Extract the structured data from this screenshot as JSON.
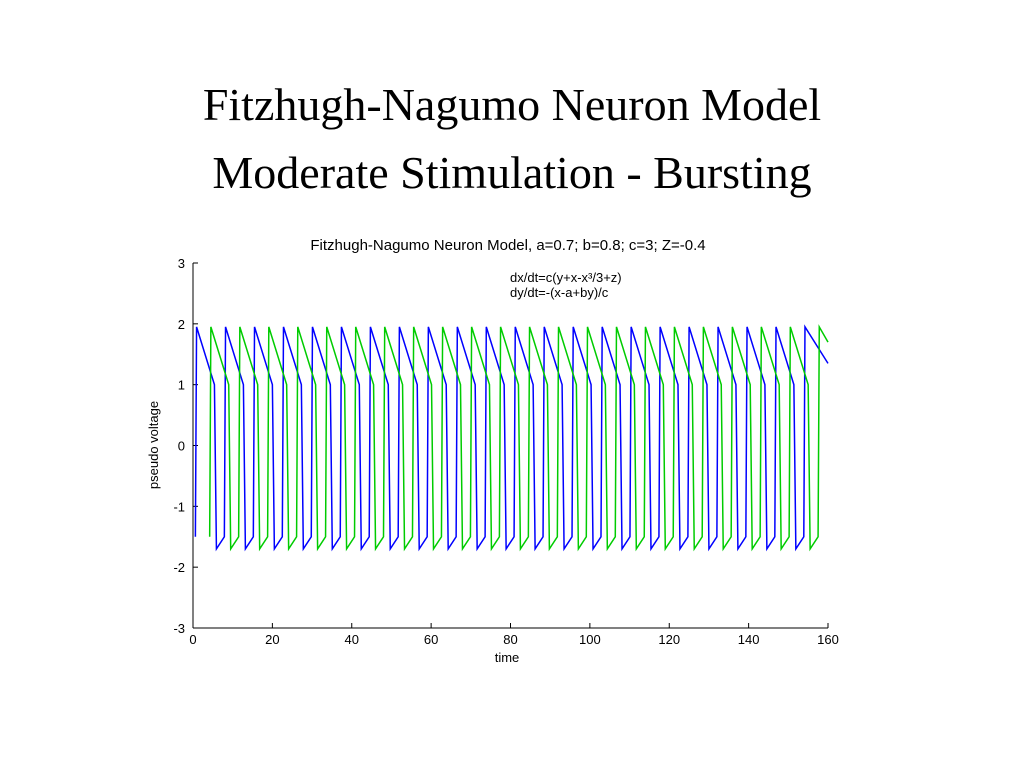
{
  "slide": {
    "title_lines": [
      "Fitzhugh-Nagumo Neuron Model",
      "Moderate Stimulation - Bursting"
    ]
  },
  "chart_data": {
    "type": "line",
    "title": "Fitzhugh-Nagumo Neuron Model, a=0.7; b=0.8; c=3; Z=-0.4",
    "annotations": [
      "dx/dt=c(y+x-x³/3+z)",
      "dy/dt=-(x-a+by)/c"
    ],
    "x_label": "time",
    "y_label": "pseudo voltage",
    "xlim": [
      0,
      160
    ],
    "xticks": [
      0,
      20,
      40,
      60,
      80,
      100,
      120,
      140,
      160
    ],
    "ylim": [
      -3,
      3
    ],
    "yticks": [
      -3,
      -2,
      -1,
      0,
      1,
      2,
      3
    ],
    "grid": false,
    "series": [
      {
        "color": "#0000ff",
        "x": [
          0.6,
          0.9,
          5.4,
          5.9,
          7.9,
          8.2,
          12.7,
          13.2,
          15.2,
          15.5,
          20.0,
          20.5,
          22.5,
          22.8,
          27.3,
          27.8,
          29.8,
          30.1,
          34.6,
          35.1,
          37.1,
          37.4,
          41.9,
          42.4,
          44.4,
          44.7,
          49.2,
          49.7,
          51.7,
          52.0,
          56.5,
          57.0,
          59.0,
          59.3,
          63.8,
          64.3,
          66.3,
          66.6,
          71.1,
          71.6,
          73.6,
          73.9,
          78.4,
          78.9,
          80.9,
          81.2,
          85.7,
          86.2,
          88.2,
          88.5,
          93.0,
          93.5,
          95.5,
          95.8,
          100.3,
          100.8,
          102.8,
          103.1,
          107.6,
          108.1,
          110.1,
          110.4,
          114.9,
          115.4,
          117.4,
          117.7,
          122.2,
          122.7,
          124.7,
          125.0,
          129.5,
          130.0,
          132.0,
          132.3,
          136.8,
          137.3,
          139.3,
          139.6,
          144.1,
          144.6,
          146.6,
          146.9,
          151.4,
          151.9,
          153.9,
          154.2,
          160
        ],
        "values": [
          -1.5,
          1.95,
          1.0,
          -1.7,
          -1.5,
          1.95,
          1.0,
          -1.7,
          -1.5,
          1.95,
          1.0,
          -1.7,
          -1.5,
          1.95,
          1.0,
          -1.7,
          -1.5,
          1.95,
          1.0,
          -1.7,
          -1.5,
          1.95,
          1.0,
          -1.7,
          -1.5,
          1.95,
          1.0,
          -1.7,
          -1.5,
          1.95,
          1.0,
          -1.7,
          -1.5,
          1.95,
          1.0,
          -1.7,
          -1.5,
          1.95,
          1.0,
          -1.7,
          -1.5,
          1.95,
          1.0,
          -1.7,
          -1.5,
          1.95,
          1.0,
          -1.7,
          -1.5,
          1.95,
          1.0,
          -1.7,
          -1.5,
          1.95,
          1.0,
          -1.7,
          -1.5,
          1.95,
          1.0,
          -1.7,
          -1.5,
          1.95,
          1.0,
          -1.7,
          -1.5,
          1.95,
          1.0,
          -1.7,
          -1.5,
          1.95,
          1.0,
          -1.7,
          -1.5,
          1.95,
          1.0,
          -1.7,
          -1.5,
          1.95,
          1.0,
          -1.7,
          -1.5,
          1.95,
          1.0,
          -1.7,
          -1.5,
          1.95,
          1.35
        ]
      },
      {
        "color": "#00cc00",
        "x": [
          4.2,
          4.5,
          9.0,
          9.5,
          11.5,
          11.8,
          16.3,
          16.8,
          18.8,
          19.1,
          23.6,
          24.1,
          26.1,
          26.4,
          30.9,
          31.4,
          33.4,
          33.7,
          38.2,
          38.7,
          40.7,
          41.0,
          45.5,
          46.0,
          48.0,
          48.3,
          52.8,
          53.3,
          55.3,
          55.6,
          60.1,
          60.6,
          62.6,
          62.9,
          67.4,
          67.9,
          69.9,
          70.2,
          74.7,
          75.2,
          77.2,
          77.5,
          82.0,
          82.5,
          84.5,
          84.8,
          89.3,
          89.8,
          91.8,
          92.1,
          96.6,
          97.1,
          99.1,
          99.4,
          103.9,
          104.4,
          106.4,
          106.7,
          111.2,
          111.7,
          113.7,
          114.0,
          118.5,
          119.0,
          121.0,
          121.3,
          125.8,
          126.3,
          128.3,
          128.6,
          133.1,
          133.6,
          135.6,
          135.9,
          140.4,
          140.9,
          142.9,
          143.2,
          147.7,
          148.2,
          150.2,
          150.5,
          155.0,
          155.5,
          157.5,
          157.8,
          160
        ],
        "values": [
          -1.5,
          1.95,
          1.0,
          -1.7,
          -1.5,
          1.95,
          1.0,
          -1.7,
          -1.5,
          1.95,
          1.0,
          -1.7,
          -1.5,
          1.95,
          1.0,
          -1.7,
          -1.5,
          1.95,
          1.0,
          -1.7,
          -1.5,
          1.95,
          1.0,
          -1.7,
          -1.5,
          1.95,
          1.0,
          -1.7,
          -1.5,
          1.95,
          1.0,
          -1.7,
          -1.5,
          1.95,
          1.0,
          -1.7,
          -1.5,
          1.95,
          1.0,
          -1.7,
          -1.5,
          1.95,
          1.0,
          -1.7,
          -1.5,
          1.95,
          1.0,
          -1.7,
          -1.5,
          1.95,
          1.0,
          -1.7,
          -1.5,
          1.95,
          1.0,
          -1.7,
          -1.5,
          1.95,
          1.0,
          -1.7,
          -1.5,
          1.95,
          1.0,
          -1.7,
          -1.5,
          1.95,
          1.0,
          -1.7,
          -1.5,
          1.95,
          1.0,
          -1.7,
          -1.5,
          1.95,
          1.0,
          -1.7,
          -1.5,
          1.95,
          1.0,
          -1.7,
          -1.5,
          1.95,
          1.0,
          -1.7,
          -1.5,
          1.95,
          1.7
        ]
      }
    ]
  }
}
